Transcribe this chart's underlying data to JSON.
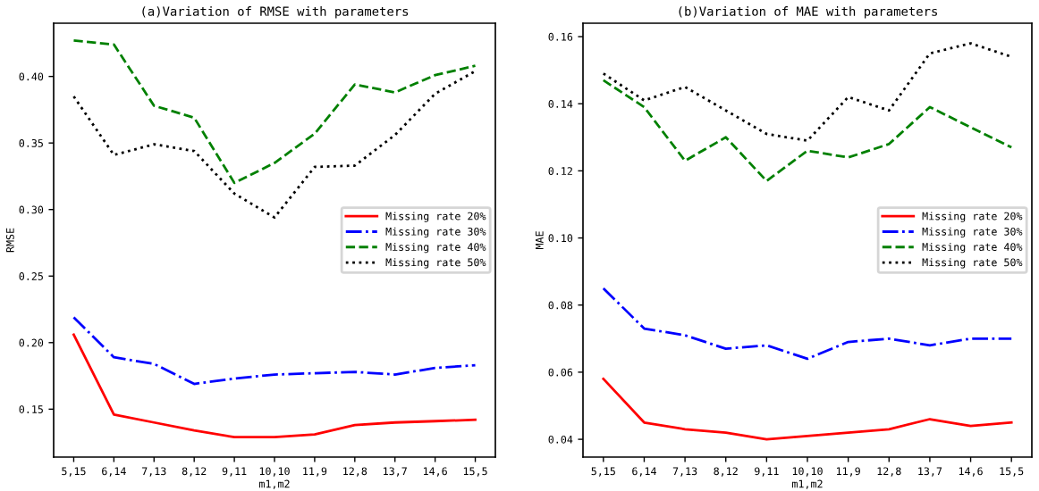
{
  "chart_data": [
    {
      "type": "line",
      "title": "(a)Variation of RMSE with parameters",
      "xlabel": "m1,m2",
      "ylabel": "RMSE",
      "categories": [
        "5,15",
        "6,14",
        "7,13",
        "8,12",
        "9,11",
        "10,10",
        "11,9",
        "12,8",
        "13,7",
        "14,6",
        "15,5"
      ],
      "ylim": [
        0.114,
        0.44
      ],
      "yticks": [
        0.15,
        {
          "value": 0.2,
          "label": "0.20"
        },
        0.25,
        {
          "value": 0.3,
          "label": "0.30"
        },
        0.35,
        {
          "value": 0.4,
          "label": "0.40"
        }
      ],
      "grid": false,
      "legend": "right",
      "series": [
        {
          "name": "Missing rate 20%",
          "color": "#ff0000",
          "line_style": "solid",
          "values": [
            0.206,
            0.146,
            0.14,
            0.134,
            0.129,
            0.129,
            0.131,
            0.138,
            0.14,
            0.141,
            0.142
          ]
        },
        {
          "name": "Missing rate 30%",
          "color": "#0000ff",
          "line_style": "dashdot",
          "values": [
            0.219,
            0.189,
            0.184,
            0.169,
            0.173,
            0.176,
            0.177,
            0.178,
            0.176,
            0.181,
            0.183
          ]
        },
        {
          "name": "Missing rate 40%",
          "color": "#008000",
          "line_style": "dashed",
          "values": [
            0.427,
            0.424,
            0.378,
            0.369,
            0.32,
            0.335,
            0.357,
            0.394,
            0.388,
            0.401,
            0.408
          ]
        },
        {
          "name": "Missing rate 50%",
          "color": "#000000",
          "line_style": "dotted",
          "values": [
            0.385,
            0.341,
            0.349,
            0.344,
            0.312,
            0.294,
            0.332,
            0.333,
            0.356,
            0.387,
            0.404
          ]
        }
      ]
    },
    {
      "type": "line",
      "title": "(b)Variation of MAE with parameters",
      "xlabel": "m1,m2",
      "ylabel": "MAE",
      "categories": [
        "5,15",
        "6,14",
        "7,13",
        "8,12",
        "9,11",
        "10,10",
        "11,9",
        "12,8",
        "13,7",
        "14,6",
        "15,5"
      ],
      "ylim": [
        0.0347,
        0.164
      ],
      "yticks": [
        0.04,
        0.06,
        0.08,
        {
          "value": 0.1,
          "label": "0.10"
        },
        0.12,
        0.14,
        0.16
      ],
      "grid": false,
      "legend": "right",
      "series": [
        {
          "name": "Missing rate 20%",
          "color": "#ff0000",
          "line_style": "solid",
          "values": [
            0.058,
            0.045,
            0.043,
            0.042,
            0.04,
            0.041,
            0.042,
            0.043,
            0.046,
            0.044,
            0.045
          ]
        },
        {
          "name": "Missing rate 30%",
          "color": "#0000ff",
          "line_style": "dashdot",
          "values": [
            0.085,
            0.073,
            0.071,
            0.067,
            0.068,
            0.064,
            0.069,
            0.07,
            0.068,
            0.07,
            0.07
          ]
        },
        {
          "name": "Missing rate 40%",
          "color": "#008000",
          "line_style": "dashed",
          "values": [
            0.147,
            0.139,
            0.123,
            0.13,
            0.117,
            0.126,
            0.124,
            0.128,
            0.139,
            0.133,
            0.127
          ]
        },
        {
          "name": "Missing rate 50%",
          "color": "#000000",
          "line_style": "dotted",
          "values": [
            0.149,
            0.141,
            0.145,
            0.138,
            0.131,
            0.129,
            0.142,
            0.138,
            0.155,
            0.158,
            0.154
          ]
        }
      ]
    }
  ]
}
